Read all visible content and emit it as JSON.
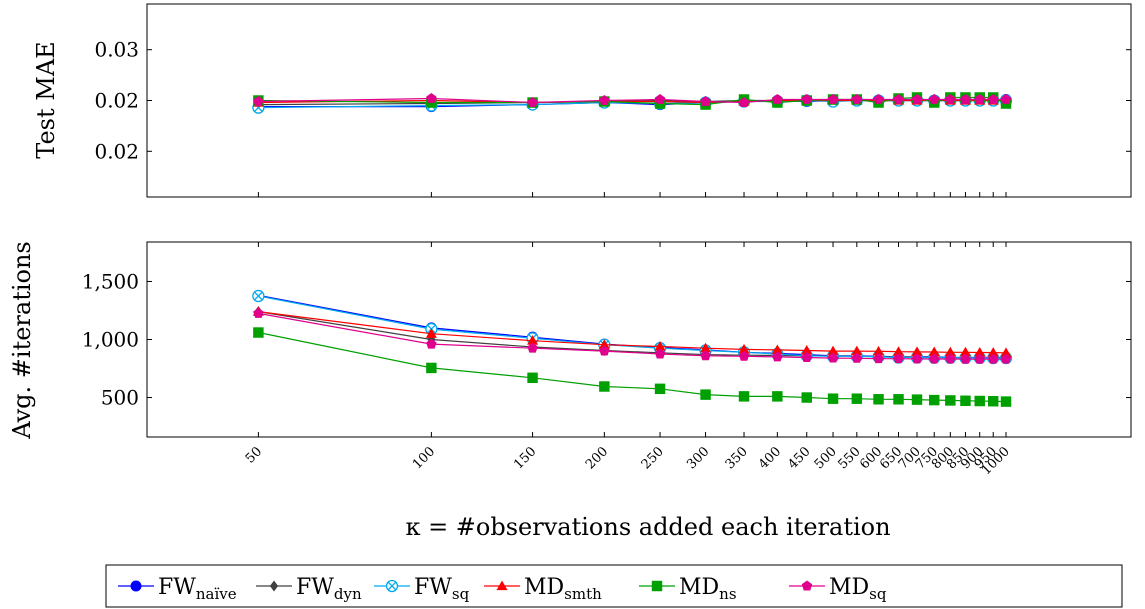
{
  "chart_data": [
    {
      "type": "line",
      "ylabel": "Test MAE",
      "ylim": [
        0.0155,
        0.0345
      ],
      "yticks": [
        {
          "value": 0.02,
          "label": "0.02"
        },
        {
          "value": 0.025,
          "label": "0.02"
        },
        {
          "value": 0.03,
          "label": "0.03"
        }
      ],
      "grid": false,
      "series": [
        {
          "name": "FW",
          "sub": "naïve",
          "color": "#0000ff",
          "marker": "circle",
          "values": [
            0.0244,
            0.0244,
            0.0246,
            0.0248,
            0.0246,
            0.0248,
            0.0249,
            0.025,
            0.0249,
            0.025,
            0.025,
            0.025,
            0.025,
            0.025,
            0.025,
            0.025,
            0.025,
            0.025,
            0.025,
            0.0251
          ]
        },
        {
          "name": "FW",
          "sub": "dyn",
          "color": "#404040",
          "marker": "diamond",
          "values": [
            0.0246,
            0.0247,
            0.0248,
            0.0249,
            0.025,
            0.0249,
            0.025,
            0.025,
            0.025,
            0.0251,
            0.025,
            0.025,
            0.025,
            0.025,
            0.025,
            0.025,
            0.025,
            0.025,
            0.025,
            0.025
          ]
        },
        {
          "name": "FW",
          "sub": "sq",
          "color": "#00aaee",
          "marker": "otimes",
          "values": [
            0.0243,
            0.0245,
            0.0246,
            0.0248,
            0.0247,
            0.0248,
            0.0249,
            0.0249,
            0.025,
            0.0249,
            0.025,
            0.025,
            0.025,
            0.025,
            0.025,
            0.025,
            0.025,
            0.025,
            0.025,
            0.025
          ]
        },
        {
          "name": "MD",
          "sub": "smth",
          "color": "#ff0000",
          "marker": "triangle",
          "values": [
            0.0248,
            0.025,
            0.0248,
            0.0249,
            0.0249,
            0.0248,
            0.0249,
            0.025,
            0.025,
            0.025,
            0.025,
            0.025,
            0.025,
            0.025,
            0.025,
            0.025,
            0.025,
            0.025,
            0.025,
            0.025
          ]
        },
        {
          "name": "MD",
          "sub": "ns",
          "color": "#00a000",
          "marker": "square",
          "values": [
            0.025,
            0.0248,
            0.0248,
            0.0249,
            0.0247,
            0.0246,
            0.0251,
            0.0248,
            0.025,
            0.0251,
            0.0251,
            0.0248,
            0.0252,
            0.0253,
            0.0248,
            0.0253,
            0.0253,
            0.0253,
            0.0253,
            0.0247
          ]
        },
        {
          "name": "MD",
          "sub": "sq",
          "color": "#e0008c",
          "marker": "pentagon",
          "values": [
            0.0249,
            0.0252,
            0.0248,
            0.025,
            0.0251,
            0.0249,
            0.0248,
            0.0251,
            0.0251,
            0.0251,
            0.0251,
            0.0251,
            0.0251,
            0.0251,
            0.0251,
            0.0251,
            0.0251,
            0.0251,
            0.0251,
            0.0251
          ]
        }
      ]
    },
    {
      "type": "line",
      "ylabel": "Avg. #iterations",
      "xlabel": "κ = #observations added each iteration",
      "x": [
        50,
        100,
        150,
        200,
        250,
        300,
        350,
        400,
        450,
        500,
        550,
        600,
        650,
        700,
        750,
        800,
        850,
        900,
        950,
        1000
      ],
      "x_scale": "log",
      "xlim": [
        32,
        1650
      ],
      "ylim": [
        160,
        1840
      ],
      "yticks": [
        {
          "value": 500,
          "label": "500"
        },
        {
          "value": 1000,
          "label": "1,000"
        },
        {
          "value": 1500,
          "label": "1,500"
        }
      ],
      "grid": false,
      "series": [
        {
          "name": "FW",
          "sub": "naïve",
          "color": "#0000ff",
          "marker": "circle",
          "values": [
            1380,
            1100,
            1020,
            960,
            930,
            910,
            890,
            880,
            870,
            860,
            860,
            855,
            850,
            850,
            850,
            845,
            845,
            845,
            845,
            845
          ]
        },
        {
          "name": "FW",
          "sub": "dyn",
          "color": "#404040",
          "marker": "diamond",
          "values": [
            1240,
            1000,
            935,
            905,
            885,
            870,
            865,
            862,
            860,
            858,
            855,
            852,
            850,
            848,
            845,
            845,
            842,
            840,
            840,
            840
          ]
        },
        {
          "name": "FW",
          "sub": "sq",
          "color": "#00aaee",
          "marker": "otimes",
          "values": [
            1375,
            1090,
            1010,
            955,
            925,
            905,
            890,
            875,
            860,
            855,
            855,
            850,
            845,
            845,
            843,
            843,
            842,
            842,
            840,
            840
          ]
        },
        {
          "name": "MD",
          "sub": "smth",
          "color": "#ff0000",
          "marker": "triangle",
          "values": [
            1240,
            1050,
            990,
            955,
            940,
            925,
            915,
            910,
            905,
            900,
            900,
            898,
            895,
            893,
            892,
            890,
            890,
            888,
            887,
            885
          ]
        },
        {
          "name": "MD",
          "sub": "ns",
          "color": "#00a000",
          "marker": "square",
          "values": [
            1060,
            755,
            670,
            595,
            575,
            525,
            510,
            510,
            500,
            490,
            490,
            485,
            485,
            482,
            478,
            475,
            472,
            470,
            468,
            465
          ]
        },
        {
          "name": "MD",
          "sub": "sq",
          "color": "#e0008c",
          "marker": "pentagon",
          "values": [
            1225,
            960,
            925,
            900,
            875,
            860,
            855,
            850,
            845,
            840,
            838,
            835,
            835,
            833,
            832,
            832,
            830,
            830,
            830,
            830
          ]
        }
      ]
    }
  ],
  "x_tick_labels": [
    "50",
    "100",
    "150",
    "200",
    "250",
    "300",
    "350",
    "400",
    "450",
    "500",
    "550",
    "600",
    "650",
    "700",
    "750",
    "800",
    "850",
    "900",
    "950",
    "1000"
  ],
  "legend": {
    "placement": "bottom-center",
    "entries": [
      {
        "name": "FW",
        "sub": "naïve"
      },
      {
        "name": "FW",
        "sub": "dyn"
      },
      {
        "name": "FW",
        "sub": "sq"
      },
      {
        "name": "MD",
        "sub": "smth"
      },
      {
        "name": "MD",
        "sub": "ns"
      },
      {
        "name": "MD",
        "sub": "sq"
      }
    ]
  }
}
